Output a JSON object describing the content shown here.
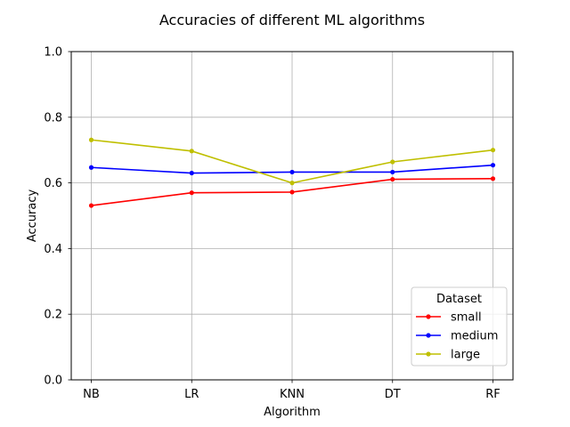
{
  "chart_data": {
    "type": "line",
    "title": "Accuracies of different ML algorithms",
    "xlabel": "Algorithm",
    "ylabel": "Accuracy",
    "categories": [
      "NB",
      "LR",
      "KNN",
      "DT",
      "RF"
    ],
    "ylim": [
      0,
      1
    ],
    "yticks": [
      "0.0",
      "0.2",
      "0.4",
      "0.6",
      "0.8",
      "1.0"
    ],
    "grid": true,
    "legend_title": "Dataset",
    "legend_position": "lower-right",
    "series": [
      {
        "name": "small",
        "color": "#ff0000",
        "values": [
          0.531,
          0.57,
          0.572,
          0.611,
          0.613
        ]
      },
      {
        "name": "medium",
        "color": "#0000ff",
        "values": [
          0.647,
          0.63,
          0.633,
          0.633,
          0.654
        ]
      },
      {
        "name": "large",
        "color": "#bfbf00",
        "values": [
          0.731,
          0.697,
          0.6,
          0.664,
          0.7
        ]
      }
    ]
  }
}
